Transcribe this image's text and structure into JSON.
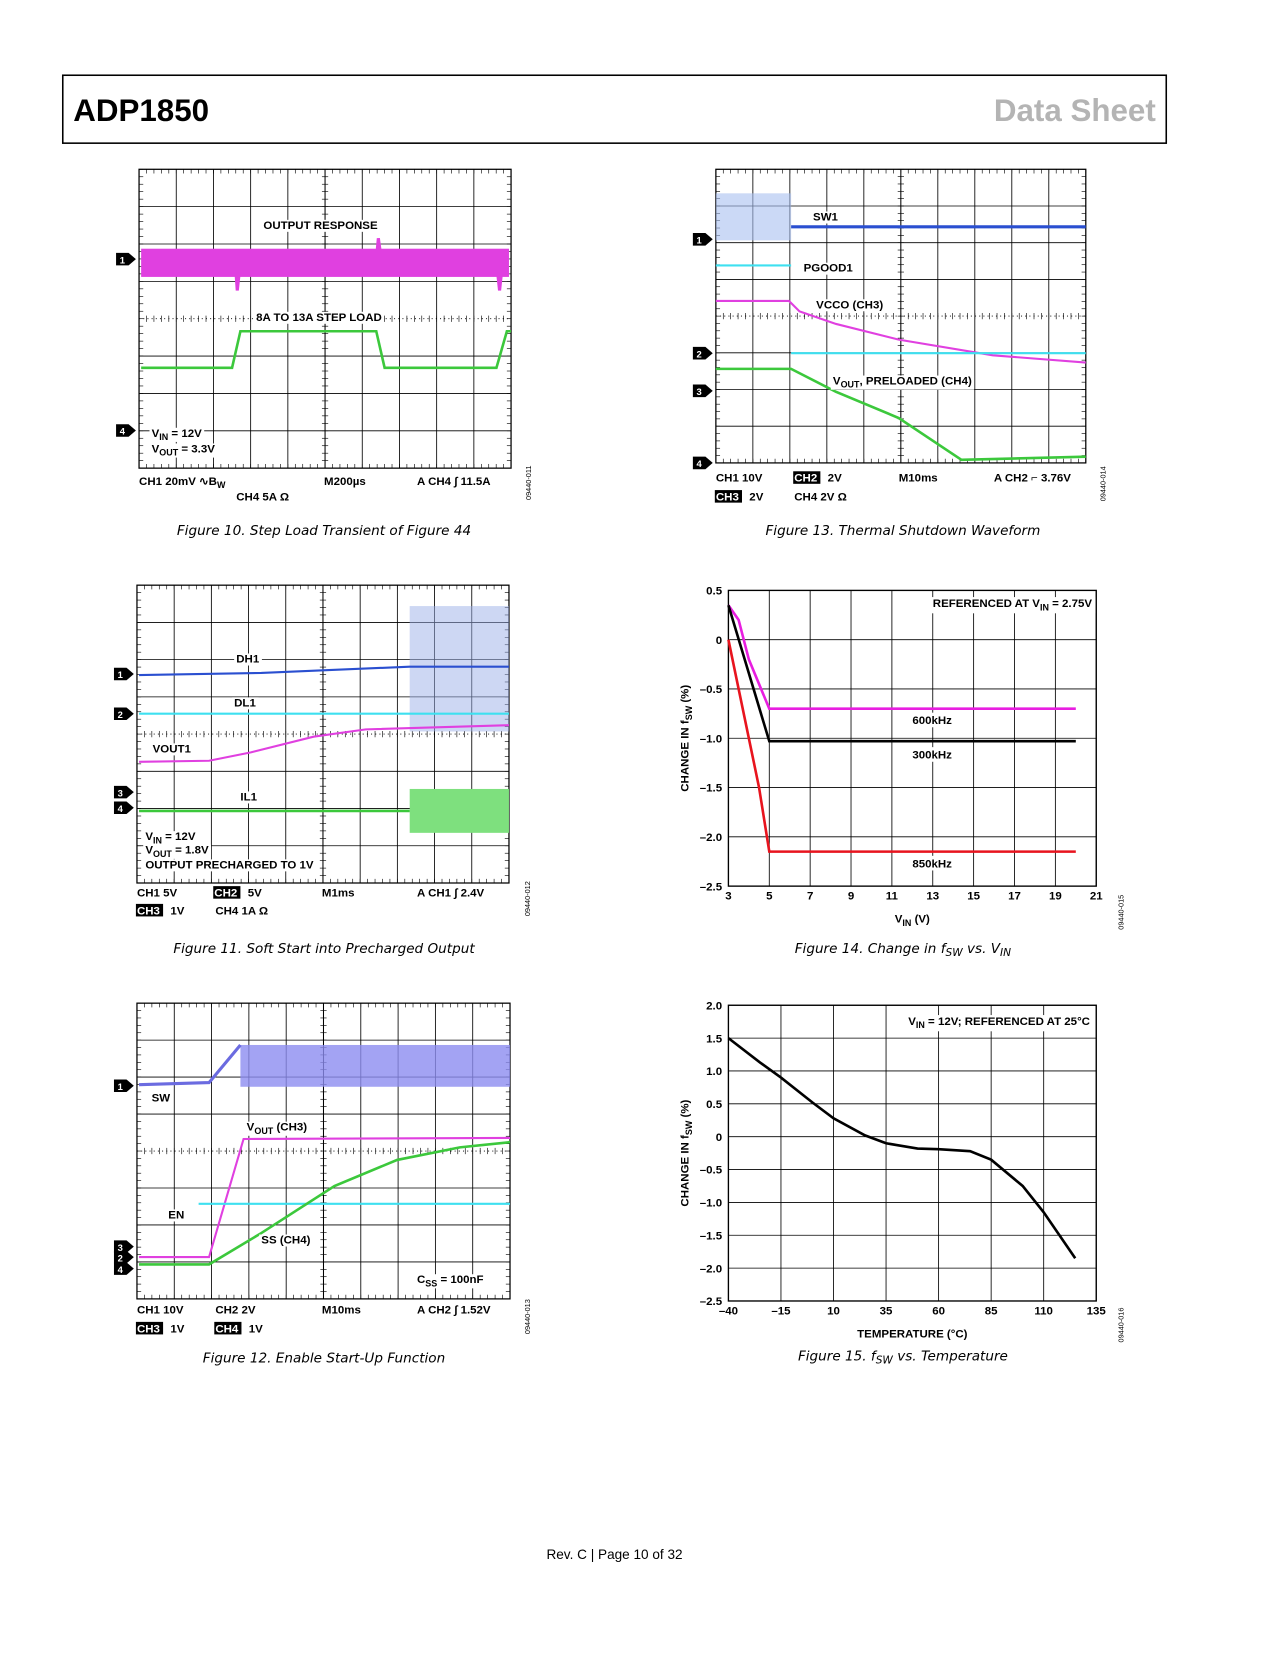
{
  "header": {
    "product": "ADP1850",
    "section": "Data Sheet"
  },
  "scopes": [
    {
      "labels": [
        [
          "OUTPUT RESPONSE"
        ],
        [
          "8A TO 13A STEP LOAD"
        ],
        [
          "V",
          "IN",
          " = 12V"
        ],
        [
          "V",
          "OUT",
          " = 3.3V"
        ]
      ],
      "markers": [
        "1",
        "4"
      ],
      "settings": [
        {
          "text": [
            "CH1  20mV ∿B",
            "W"
          ]
        },
        {
          "text": [
            "CH4  5A Ω"
          ]
        },
        {
          "text": [
            "M200µs"
          ]
        },
        {
          "text": [
            "A  CH4 ∫ 11.5A"
          ]
        }
      ],
      "code": "09440-011",
      "caption": [
        "Figure 10. Step Load Transient of Figure 44"
      ]
    },
    {
      "labels": [
        [
          "DH1"
        ],
        [
          "DL1"
        ],
        [
          "VOUT1"
        ],
        [
          "IL1"
        ],
        [
          "V",
          "IN",
          " = 12V"
        ],
        [
          "V",
          "OUT",
          " = 1.8V"
        ],
        [
          "OUTPUT PRECHARGED TO 1V"
        ]
      ],
      "markers": [
        "1",
        "2",
        "3",
        "4"
      ],
      "settings": [
        {
          "text": [
            "CH1  5V"
          ]
        },
        {
          "boxed": "CH2",
          "text": [
            "5V"
          ]
        },
        {
          "text": [
            "M1ms"
          ]
        },
        {
          "text": [
            "A  CH1 ∫ 2.4V"
          ]
        },
        {
          "boxed": "CH3",
          "text": [
            "1V"
          ]
        },
        {
          "text": [
            "CH4  1A Ω"
          ]
        }
      ],
      "code": "09440-012",
      "caption": [
        "Figure 11. Soft Start into Precharged Output"
      ]
    },
    {
      "labels": [
        [
          "SW"
        ],
        [
          "V",
          "OUT",
          " (CH3)"
        ],
        [
          "EN"
        ],
        [
          "SS (CH4)"
        ],
        [
          "C",
          "SS",
          " = 100nF"
        ]
      ],
      "markers": [
        "1",
        "3",
        "2",
        "4"
      ],
      "settings": [
        {
          "text": [
            "CH1  10V"
          ]
        },
        {
          "text": [
            "CH2  2V"
          ]
        },
        {
          "text": [
            "M10ms"
          ]
        },
        {
          "text": [
            "A  CH2 ∫ 1.52V"
          ]
        },
        {
          "boxed": "CH3",
          "text": [
            "1V"
          ]
        },
        {
          "boxed": "CH4",
          "text": [
            "1V"
          ]
        }
      ],
      "code": "09440-013",
      "caption": [
        "Figure 12. Enable Start-Up Function"
      ]
    },
    {
      "labels": [
        [
          "SW1"
        ],
        [
          "PGOOD1"
        ],
        [
          "VCCO (CH3)"
        ],
        [
          "V",
          "OUT",
          ", PRELOADED (CH4)"
        ]
      ],
      "markers": [
        "1",
        "2",
        "3",
        "4"
      ],
      "settings": [
        {
          "text": [
            "CH1  10V"
          ]
        },
        {
          "boxed": "CH2",
          "text": [
            "2V"
          ]
        },
        {
          "text": [
            "M10ms"
          ]
        },
        {
          "text": [
            "A  CH2 ⌐ 3.76V"
          ]
        },
        {
          "boxed": "CH3",
          "text": [
            "2V"
          ]
        },
        {
          "text": [
            "CH4  2V Ω"
          ]
        }
      ],
      "code": "09440-014",
      "caption": [
        "Figure 13. Thermal Shutdown Waveform"
      ]
    }
  ],
  "chart_data": [
    {
      "type": "line",
      "annotation": [
        "REFERENCED AT V",
        "IN",
        " = 2.75V"
      ],
      "x_label": [
        "V",
        "IN",
        " (V)"
      ],
      "y_label": [
        "CHANGE IN f",
        "SW",
        " (%)"
      ],
      "xlim": [
        3,
        21
      ],
      "xticks": [
        3,
        5,
        7,
        9,
        11,
        13,
        15,
        17,
        19,
        21
      ],
      "ylim": [
        -2.5,
        0.5
      ],
      "yticks": [
        0.5,
        0,
        {
          "value": -0.5,
          "label": "–0.5"
        },
        {
          "value": -1,
          "label": "–1.0"
        },
        {
          "value": -1.5,
          "label": "–1.5"
        },
        {
          "value": -2,
          "label": "–2.0"
        },
        {
          "value": -2.5,
          "label": "–2.5"
        }
      ],
      "grid": true,
      "series": [
        {
          "name": "600kHz",
          "color": "#e81ee0",
          "x": [
            3,
            3.5,
            4,
            5,
            20
          ],
          "values": [
            0.35,
            0.2,
            -0.2,
            -0.7,
            -0.7
          ]
        },
        {
          "name": "300kHz",
          "color": "#000000",
          "x": [
            3,
            5,
            20
          ],
          "values": [
            0.35,
            -1.03,
            -1.03
          ]
        },
        {
          "name": "850kHz",
          "color": "#e8141e",
          "x": [
            3,
            4.5,
            5,
            20
          ],
          "values": [
            0,
            -1.5,
            -2.15,
            -2.15
          ]
        }
      ],
      "code": "09440-015",
      "caption": [
        "Figure 14. Change in f",
        "SW",
        " vs. V",
        "IN"
      ]
    },
    {
      "type": "line",
      "annotation": [
        "V",
        "IN",
        " = 12V; REFERENCED AT 25°C"
      ],
      "x_label": [
        "TEMPERATURE (°C)"
      ],
      "y_label": [
        "CHANGE IN f",
        "SW",
        " (%)"
      ],
      "xlim": [
        -40,
        135
      ],
      "xticks": [
        {
          "value": -40,
          "label": "–40"
        },
        {
          "value": -15,
          "label": "–15"
        },
        10,
        35,
        60,
        85,
        110,
        135
      ],
      "ylim": [
        -2.5,
        2
      ],
      "yticks": [
        {
          "value": 2,
          "label": "2.0"
        },
        1.5,
        {
          "value": 1,
          "label": "1.0"
        },
        0.5,
        0,
        {
          "value": -0.5,
          "label": "–0.5"
        },
        {
          "value": -1,
          "label": "–1.0"
        },
        {
          "value": -1.5,
          "label": "–1.5"
        },
        {
          "value": -2,
          "label": "–2.0"
        },
        {
          "value": -2.5,
          "label": "–2.5"
        }
      ],
      "grid": true,
      "series": [
        {
          "color": "#000000",
          "x": [
            -40,
            -25,
            -15,
            0,
            10,
            25,
            35,
            50,
            60,
            75,
            85,
            100,
            110,
            125
          ],
          "values": [
            1.5,
            1.13,
            0.9,
            0.52,
            0.28,
            0.02,
            -0.1,
            -0.18,
            -0.19,
            -0.22,
            -0.35,
            -0.75,
            -1.15,
            -1.85
          ]
        }
      ],
      "code": "09440-016",
      "caption": [
        "Figure 15. f",
        "SW",
        " vs. Temperature"
      ]
    }
  ],
  "footer": "Rev. C | Page 10 of 32"
}
